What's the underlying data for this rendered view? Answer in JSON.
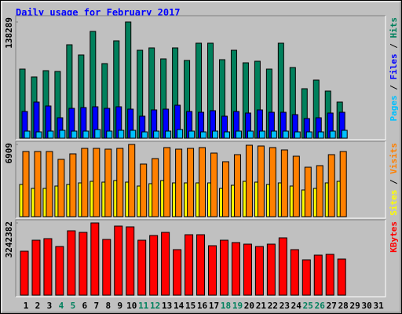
{
  "chart_data": {
    "type": "bar",
    "title": "Daily usage for February 2017",
    "legend_separator": "/",
    "categories": [
      "1",
      "2",
      "3",
      "4",
      "5",
      "6",
      "7",
      "8",
      "9",
      "10",
      "11",
      "12",
      "13",
      "14",
      "15",
      "16",
      "17",
      "18",
      "19",
      "20",
      "21",
      "22",
      "23",
      "24",
      "25",
      "26",
      "27",
      "28",
      "29",
      "30",
      "31"
    ],
    "highlight_categories": [
      "4",
      "5",
      "11",
      "12",
      "18",
      "19",
      "25",
      "26"
    ],
    "label_color": "#000000",
    "highlight_color": "#00805C",
    "panels": [
      {
        "ylim": [
          0,
          138289
        ],
        "yticks": [
          138289
        ],
        "draw_reverse": true,
        "series": [
          {
            "name": "Pages",
            "color": "#00C0FF",
            "values": [
              8410,
              7476,
              8410,
              9345,
              8410,
              8410,
              10279,
              8410,
              9345,
              9345,
              7476,
              8410,
              8410,
              10279,
              8410,
              7476,
              8410,
              7476,
              8410,
              8410,
              8410,
              8410,
              8410,
              7476,
              7476,
              7476,
              8410,
              9345,
              null,
              null,
              null
            ]
          },
          {
            "name": "Files",
            "color": "#0000FF",
            "values": [
              31770,
              42982,
              38310,
              24294,
              35506,
              36441,
              37375,
              35506,
              37375,
              34572,
              26163,
              33638,
              34572,
              39244,
              31770,
              30835,
              32704,
              26163,
              31770,
              29901,
              33638,
              30835,
              30835,
              28032,
              23360,
              24294,
              29901,
              30835,
              null,
              null,
              null
            ]
          },
          {
            "name": "Hits",
            "color": "#00805C",
            "values": [
              82227,
              72880,
              80357,
              79423,
              111193,
              99046,
              127078,
              88767,
              115864,
              138289,
              104651,
              107454,
              94373,
              107454,
              92504,
              113059,
              113059,
              93439,
              104651,
              89701,
              91569,
              82227,
              113059,
              84095,
              58866,
              69144,
              56063,
              42982,
              null,
              null,
              null
            ]
          }
        ]
      },
      {
        "ylim": [
          0,
          6909
        ],
        "yticks": [
          6909
        ],
        "draw_reverse": false,
        "series": [
          {
            "name": "Sites",
            "color": "#FFFF00",
            "values": [
              3079,
              2704,
              2704,
              2929,
              3079,
              3229,
              3380,
              3304,
              3455,
              3304,
              2929,
              3154,
              3455,
              3229,
              3229,
              3229,
              3229,
              2704,
              3004,
              3380,
              3304,
              3079,
              3229,
              2929,
              2553,
              2704,
              3229,
              3380,
              null,
              null,
              null
            ]
          },
          {
            "name": "Visits",
            "color": "#FF8000",
            "values": [
              6233,
              6233,
              6233,
              5482,
              6008,
              6534,
              6534,
              6459,
              6534,
              6909,
              5032,
              5557,
              6609,
              6459,
              6534,
              6609,
              6083,
              5257,
              5933,
              6834,
              6759,
              6609,
              6384,
              5783,
              4731,
              4882,
              5933,
              6233,
              null,
              null,
              null
            ]
          }
        ]
      },
      {
        "ylim": [
          0,
          3242382
        ],
        "yticks": [
          3242382
        ],
        "draw_reverse": false,
        "series": [
          {
            "name": "KBytes",
            "color": "#FF0000",
            "values": [
              1973608,
              2467010,
              2537496,
              2185066,
              2889926,
              2819440,
              3242382,
              2502253,
              3101384,
              3066141,
              2467010,
              2678468,
              2819440,
              2044094,
              2713711,
              2713711,
              2220309,
              2467010,
              2361281,
              2290795,
              2185066,
              2290795,
              2572739,
              2044094,
              1585935,
              1797393,
              1832636,
              1621178,
              null,
              null,
              null
            ]
          }
        ]
      }
    ]
  }
}
